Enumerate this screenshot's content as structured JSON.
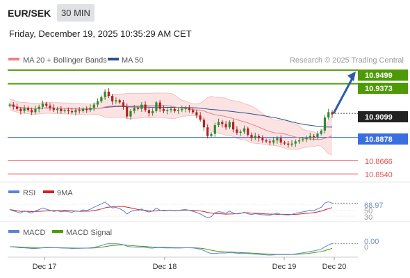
{
  "header": {
    "pair": "EUR/SEK",
    "timeframe": "30 MIN",
    "datetime": "Friday, December 19, 2025 10:35:29 AM CET"
  },
  "legend": {
    "ma20": "MA 20 + Bollinger Bands",
    "ma50": "MA 50",
    "source": "Research © 2025 Trading Central"
  },
  "colors": {
    "ma20": "#f08080",
    "ma50": "#2e4f8f",
    "resistance": "#4e9a06",
    "pivot": "#3a6fe0",
    "support": "#e05050",
    "bollinger_fill": "#fbe3e3",
    "candle_up": "#2e8b2e",
    "candle_down": "#b22222",
    "price_tag": "#222222",
    "arrow": "#2e5aa8"
  },
  "chart_data": {
    "type": "candlestick",
    "instrument": "EUR/SEK",
    "interval": "30 MIN",
    "x_labels": [
      "Dec 17",
      "Dec 18",
      "Dec 19",
      "Dec 20"
    ],
    "ylim": [
      10.849,
      10.953
    ],
    "last_price": 10.9099,
    "candles_close": [
      10.918,
      10.916,
      10.914,
      10.912,
      10.915,
      10.913,
      10.911,
      10.914,
      10.916,
      10.919,
      10.917,
      10.915,
      10.913,
      10.914,
      10.912,
      10.913,
      10.912,
      10.911,
      10.913,
      10.912,
      10.914,
      10.913,
      10.915,
      10.918,
      10.921,
      10.925,
      10.93,
      10.926,
      10.921,
      10.922,
      10.92,
      10.916,
      10.907,
      10.912,
      10.915,
      10.914,
      10.918,
      10.913,
      10.91,
      10.912,
      10.92,
      10.914,
      10.912,
      10.913,
      10.914,
      10.912,
      10.913,
      10.914,
      10.915,
      10.913,
      10.911,
      10.908,
      10.904,
      10.897,
      10.889,
      10.891,
      10.899,
      10.902,
      10.9,
      10.897,
      10.902,
      10.895,
      10.892,
      10.893,
      10.896,
      10.89,
      10.887,
      10.889,
      10.887,
      10.885,
      10.884,
      10.883,
      10.885,
      10.887,
      10.883,
      10.882,
      10.881,
      10.882,
      10.884,
      10.885,
      10.886,
      10.887,
      10.889,
      10.888,
      10.891,
      10.894,
      10.906,
      10.911,
      10.909
    ],
    "levels": {
      "resistance": [
        10.9499,
        10.9373
      ],
      "pivot": 10.8878,
      "support": [
        10.8666,
        10.854
      ]
    },
    "forecast_arrow": {
      "from": 10.9099,
      "to": 10.9499,
      "direction": "up"
    },
    "rsi": {
      "label": "RSI",
      "signal_label": "9MA",
      "value": 68.97,
      "levels": [
        70,
        50,
        30
      ]
    },
    "macd": {
      "label": "MACD",
      "signal_label": "MACD Signal",
      "value": 0.0,
      "zero_label": "0"
    }
  },
  "level_labels": {
    "r2": "10.9499",
    "r1": "10.9373",
    "price": "10.9099",
    "pivot": "10.8878",
    "s1": "10.8666",
    "s2": "10.8540"
  },
  "rsi_labels": {
    "value": "68.97",
    "l50": "50",
    "l30": "30"
  },
  "macd_labels": {
    "value": "0.00",
    "zero": "0"
  }
}
